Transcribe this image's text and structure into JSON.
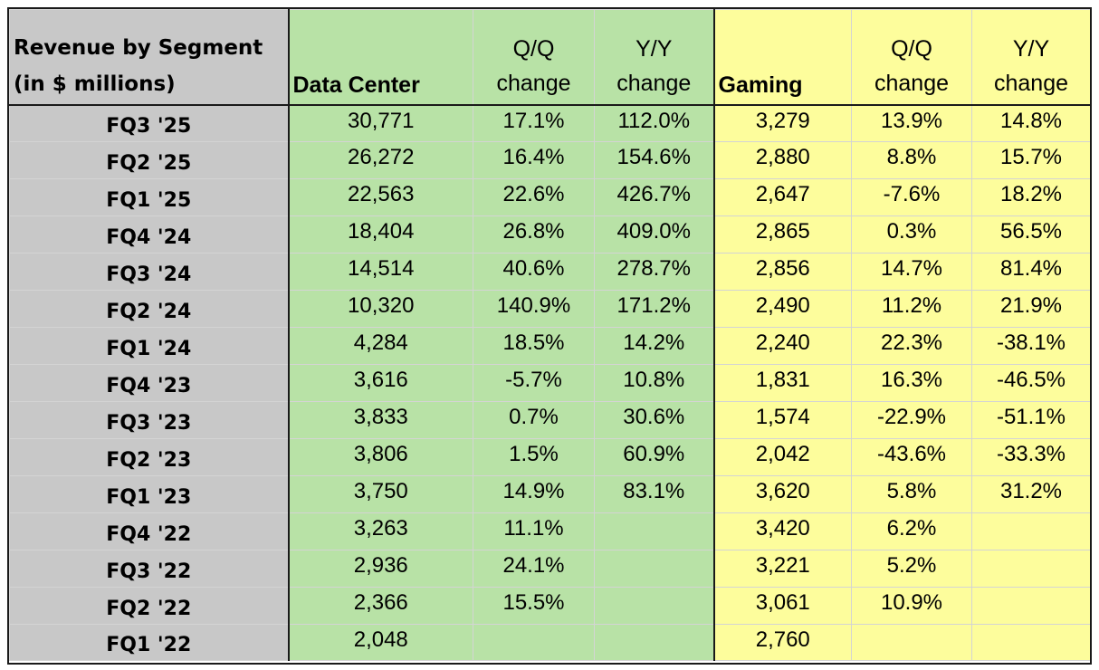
{
  "header": {
    "title_line1": "Revenue by Segment",
    "title_line2": "(in $ millions)",
    "data_center": "Data Center",
    "gaming": "Gaming",
    "qq_line1": "Q/Q",
    "yy_line1": "Y/Y",
    "change": "change"
  },
  "colors": {
    "label_column": "#c8c8c8",
    "data_center_block": "#b8e2a6",
    "gaming_block": "#fdfd9c"
  },
  "rows": [
    {
      "label": "FQ3 '25",
      "dc": "30,771",
      "dc_qq": "17.1%",
      "dc_yy": "112.0%",
      "gm": "3,279",
      "gm_qq": "13.9%",
      "gm_yy": "14.8%"
    },
    {
      "label": "FQ2 '25",
      "dc": "26,272",
      "dc_qq": "16.4%",
      "dc_yy": "154.6%",
      "gm": "2,880",
      "gm_qq": "8.8%",
      "gm_yy": "15.7%"
    },
    {
      "label": "FQ1 '25",
      "dc": "22,563",
      "dc_qq": "22.6%",
      "dc_yy": "426.7%",
      "gm": "2,647",
      "gm_qq": "-7.6%",
      "gm_yy": "18.2%"
    },
    {
      "label": "FQ4 '24",
      "dc": "18,404",
      "dc_qq": "26.8%",
      "dc_yy": "409.0%",
      "gm": "2,865",
      "gm_qq": "0.3%",
      "gm_yy": "56.5%"
    },
    {
      "label": "FQ3 '24",
      "dc": "14,514",
      "dc_qq": "40.6%",
      "dc_yy": "278.7%",
      "gm": "2,856",
      "gm_qq": "14.7%",
      "gm_yy": "81.4%"
    },
    {
      "label": "FQ2 '24",
      "dc": "10,320",
      "dc_qq": "140.9%",
      "dc_yy": "171.2%",
      "gm": "2,490",
      "gm_qq": "11.2%",
      "gm_yy": "21.9%"
    },
    {
      "label": "FQ1 '24",
      "dc": "4,284",
      "dc_qq": "18.5%",
      "dc_yy": "14.2%",
      "gm": "2,240",
      "gm_qq": "22.3%",
      "gm_yy": "-38.1%"
    },
    {
      "label": "FQ4 '23",
      "dc": "3,616",
      "dc_qq": "-5.7%",
      "dc_yy": "10.8%",
      "gm": "1,831",
      "gm_qq": "16.3%",
      "gm_yy": "-46.5%"
    },
    {
      "label": "FQ3 '23",
      "dc": "3,833",
      "dc_qq": "0.7%",
      "dc_yy": "30.6%",
      "gm": "1,574",
      "gm_qq": "-22.9%",
      "gm_yy": "-51.1%"
    },
    {
      "label": "FQ2 '23",
      "dc": "3,806",
      "dc_qq": "1.5%",
      "dc_yy": "60.9%",
      "gm": "2,042",
      "gm_qq": "-43.6%",
      "gm_yy": "-33.3%"
    },
    {
      "label": "FQ1 '23",
      "dc": "3,750",
      "dc_qq": "14.9%",
      "dc_yy": "83.1%",
      "gm": "3,620",
      "gm_qq": "5.8%",
      "gm_yy": "31.2%"
    },
    {
      "label": "FQ4 '22",
      "dc": "3,263",
      "dc_qq": "11.1%",
      "dc_yy": "",
      "gm": "3,420",
      "gm_qq": "6.2%",
      "gm_yy": ""
    },
    {
      "label": "FQ3 '22",
      "dc": "2,936",
      "dc_qq": "24.1%",
      "dc_yy": "",
      "gm": "3,221",
      "gm_qq": "5.2%",
      "gm_yy": ""
    },
    {
      "label": "FQ2 '22",
      "dc": "2,366",
      "dc_qq": "15.5%",
      "dc_yy": "",
      "gm": "3,061",
      "gm_qq": "10.9%",
      "gm_yy": ""
    },
    {
      "label": "FQ1 '22",
      "dc": "2,048",
      "dc_qq": "",
      "dc_yy": "",
      "gm": "2,760",
      "gm_qq": "",
      "gm_yy": ""
    }
  ]
}
